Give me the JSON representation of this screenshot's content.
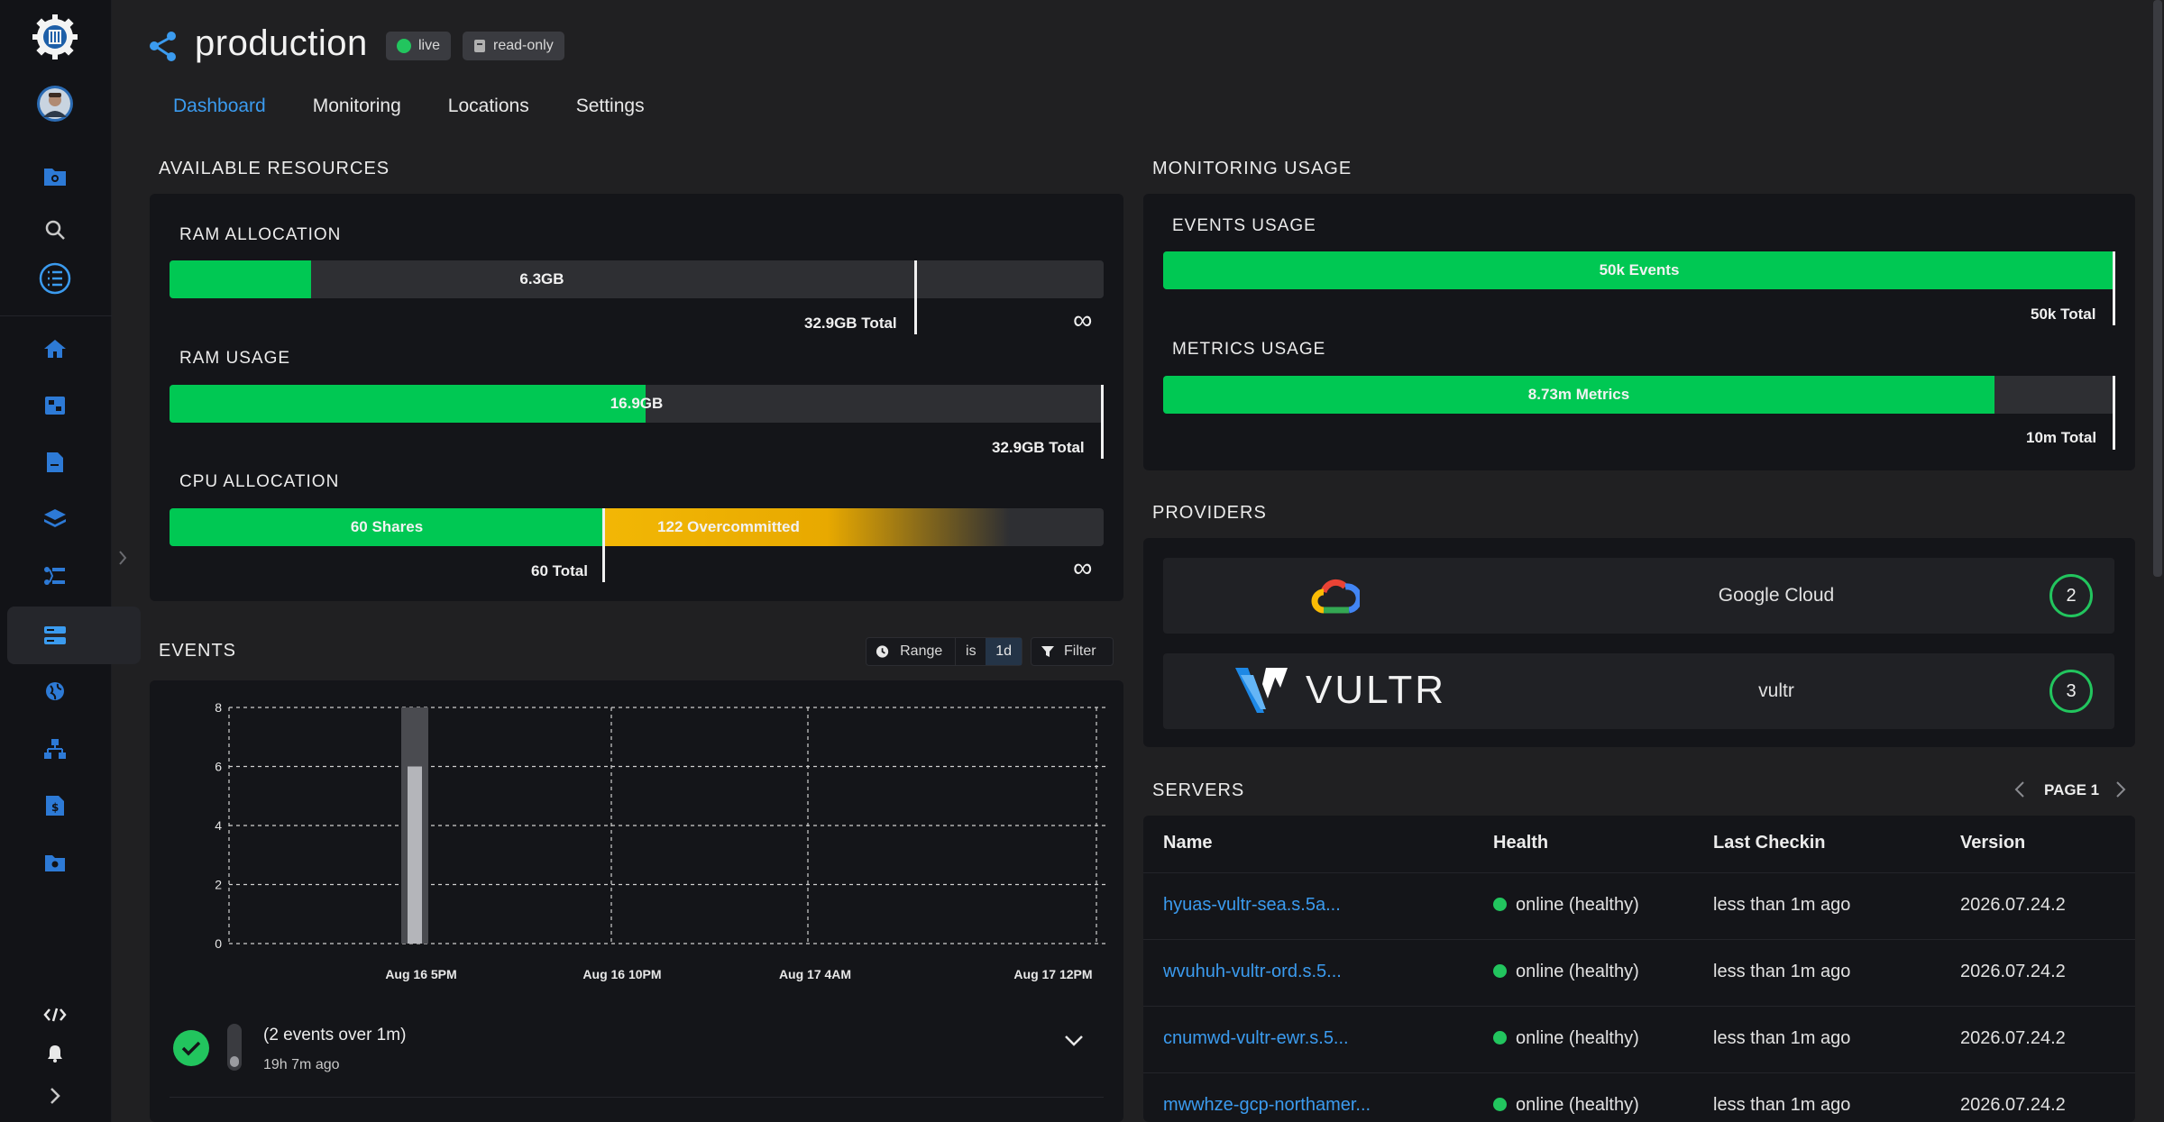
{
  "sidebar": {
    "icons": [
      "logo-gear-icon",
      "avatar",
      "folder-gear-icon",
      "search-icon",
      "checklist-icon",
      "home-icon",
      "cluster-icon",
      "document-icon",
      "layers-icon",
      "workflow-icon",
      "servers-icon",
      "globe-icon",
      "network-icon",
      "billing-icon",
      "settings-folder-icon",
      "code-icon",
      "bell-icon",
      "expand-icon"
    ]
  },
  "header": {
    "title": "production",
    "badges": {
      "live": "live",
      "readonly": "read-only"
    }
  },
  "tabs": [
    "Dashboard",
    "Monitoring",
    "Locations",
    "Settings"
  ],
  "resources": {
    "heading": "AVAILABLE RESOURCES",
    "ram_allocation": {
      "label": "RAM ALLOCATION",
      "value_text": "6.3GB",
      "total_text": "32.9GB Total",
      "infinity": "∞",
      "fill_fraction": 0.19
    },
    "ram_usage": {
      "label": "RAM USAGE",
      "value_text": "16.9GB",
      "total_text": "32.9GB Total",
      "fill_fraction": 0.51
    },
    "cpu_allocation": {
      "label": "CPU ALLOCATION",
      "shares_text": "60 Shares",
      "overcommit_text": "122 Overcommitted",
      "total_text": "60 Total",
      "infinity": "∞"
    }
  },
  "monitoring": {
    "heading": "MONITORING USAGE",
    "events": {
      "label": "EVENTS USAGE",
      "value_text": "50k Events",
      "total_text": "50k Total",
      "fill_fraction": 1.0
    },
    "metrics": {
      "label": "METRICS USAGE",
      "value_text": "8.73m Metrics",
      "total_text": "10m Total",
      "fill_fraction": 0.873
    }
  },
  "events": {
    "heading": "EVENTS",
    "range_label": "Range",
    "range_op": "is",
    "range_value": "1d",
    "filter_label": "Filter",
    "item": {
      "title": "(2 events over 1m)",
      "time": "19h 7m ago"
    }
  },
  "chart_data": {
    "type": "bar",
    "y_ticks": [
      "0",
      "2",
      "4",
      "6",
      "8"
    ],
    "x_ticks": [
      "Aug 16 5PM",
      "Aug 16 10PM",
      "Aug 17 4AM",
      "Aug 17 12PM"
    ],
    "ylim": [
      0,
      8
    ],
    "values": [
      {
        "x": "Aug 16 5PM",
        "y": 6
      }
    ]
  },
  "providers": {
    "heading": "PROVIDERS",
    "items": [
      {
        "name": "Google Cloud",
        "count": "2",
        "logo": "google-cloud-logo"
      },
      {
        "name": "vultr",
        "count": "3",
        "logo": "vultr-logo",
        "logo_text": "VULTR"
      }
    ]
  },
  "servers": {
    "heading": "SERVERS",
    "page_label": "PAGE 1",
    "columns": [
      "Name",
      "Health",
      "Last Checkin",
      "Version"
    ],
    "rows": [
      {
        "name": "hyuas-vultr-sea.s.5a...",
        "health": "online (healthy)",
        "checkin": "less than 1m ago",
        "version": "2026.07.24.2"
      },
      {
        "name": "wvuhuh-vultr-ord.s.5...",
        "health": "online (healthy)",
        "checkin": "less than 1m ago",
        "version": "2026.07.24.2"
      },
      {
        "name": "cnumwd-vultr-ewr.s.5...",
        "health": "online (healthy)",
        "checkin": "less than 1m ago",
        "version": "2026.07.24.2"
      },
      {
        "name": "mwwhze-gcp-northamer...",
        "health": "online (healthy)",
        "checkin": "less than 1m ago",
        "version": "2026.07.24.2"
      }
    ]
  },
  "colors": {
    "accent": "#3b9bef",
    "success": "#00c853",
    "warning": "#f2b705",
    "background": "#202022",
    "panel": "#141519"
  }
}
